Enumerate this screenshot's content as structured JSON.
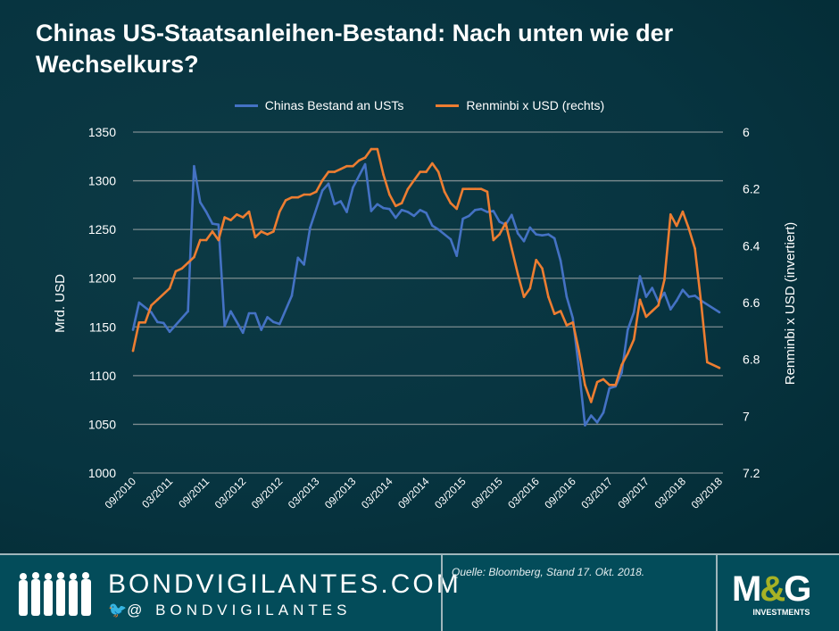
{
  "title": "Chinas US-Staatsanleihen-Bestand: Nach unten wie der Wechselkurs?",
  "footer": {
    "brand": "BONDVIGILANTES.COM",
    "handle": "@ BONDVIGILANTES",
    "source": "Quelle: Bloomberg, Stand 17. Okt. 2018.",
    "logo": "M&G INVESTMENTS",
    "logo_main_left": "M",
    "logo_amp": "&",
    "logo_main_right": "G",
    "logo_sub": "INVESTMENTS"
  },
  "chart_data": {
    "type": "line",
    "title": "Chinas US-Staatsanleihen-Bestand: Nach unten wie der Wechselkurs?",
    "ylabel": "Mrd. USD",
    "y2label": "Renminbi x USD (invertiert)",
    "ylim": [
      1000,
      1350
    ],
    "y2lim": [
      6,
      7.2
    ],
    "y2_inverted": true,
    "yticks": [
      1000,
      1050,
      1100,
      1150,
      1200,
      1250,
      1300,
      1350
    ],
    "y2ticks": [
      "6",
      "6.2",
      "6.4",
      "6.6",
      "6.8",
      "7",
      "7.2"
    ],
    "xticks": [
      "09/2010",
      "03/2011",
      "09/2011",
      "03/2012",
      "09/2012",
      "03/2013",
      "09/2013",
      "03/2014",
      "09/2014",
      "03/2015",
      "09/2015",
      "03/2016",
      "09/2016",
      "03/2017",
      "09/2017",
      "03/2018",
      "09/2018"
    ],
    "grid": true,
    "legend_position": "top",
    "series": [
      {
        "name": "Chinas Bestand an USTs",
        "axis": "left",
        "color": "#4472c4",
        "points": [
          [
            "2010-09",
            1147
          ],
          [
            "2010-10",
            1175
          ],
          [
            "2010-12",
            1165
          ],
          [
            "2011-01",
            1155
          ],
          [
            "2011-02",
            1154
          ],
          [
            "2011-03",
            1145
          ],
          [
            "2011-06",
            1166
          ],
          [
            "2011-07",
            1315
          ],
          [
            "2011-08",
            1278
          ],
          [
            "2011-09",
            1268
          ],
          [
            "2011-10",
            1256
          ],
          [
            "2011-11",
            1255
          ],
          [
            "2011-12",
            1151
          ],
          [
            "2012-01",
            1166
          ],
          [
            "2012-03",
            1144
          ],
          [
            "2012-04",
            1164
          ],
          [
            "2012-05",
            1164
          ],
          [
            "2012-06",
            1147
          ],
          [
            "2012-07",
            1160
          ],
          [
            "2012-08",
            1155
          ],
          [
            "2012-09",
            1153
          ],
          [
            "2012-11",
            1182
          ],
          [
            "2012-12",
            1221
          ],
          [
            "2013-01",
            1214
          ],
          [
            "2013-02",
            1252
          ],
          [
            "2013-04",
            1290
          ],
          [
            "2013-05",
            1297
          ],
          [
            "2013-06",
            1276
          ],
          [
            "2013-07",
            1279
          ],
          [
            "2013-08",
            1268
          ],
          [
            "2013-09",
            1293
          ],
          [
            "2013-11",
            1317
          ],
          [
            "2013-12",
            1269
          ],
          [
            "2014-01",
            1276
          ],
          [
            "2014-02",
            1272
          ],
          [
            "2014-03",
            1271
          ],
          [
            "2014-04",
            1262
          ],
          [
            "2014-05",
            1270
          ],
          [
            "2014-06",
            1268
          ],
          [
            "2014-07",
            1264
          ],
          [
            "2014-08",
            1270
          ],
          [
            "2014-09",
            1267
          ],
          [
            "2014-10",
            1254
          ],
          [
            "2014-11",
            1250
          ],
          [
            "2015-01",
            1240
          ],
          [
            "2015-02",
            1223
          ],
          [
            "2015-03",
            1261
          ],
          [
            "2015-04",
            1264
          ],
          [
            "2015-05",
            1270
          ],
          [
            "2015-06",
            1271
          ],
          [
            "2015-07",
            1268
          ],
          [
            "2015-08",
            1269
          ],
          [
            "2015-09",
            1258
          ],
          [
            "2015-10",
            1255
          ],
          [
            "2015-11",
            1265
          ],
          [
            "2015-12",
            1246
          ],
          [
            "2016-01",
            1238
          ],
          [
            "2016-02",
            1252
          ],
          [
            "2016-03",
            1245
          ],
          [
            "2016-04",
            1244
          ],
          [
            "2016-05",
            1245
          ],
          [
            "2016-06",
            1241
          ],
          [
            "2016-07",
            1218
          ],
          [
            "2016-08",
            1181
          ],
          [
            "2016-09",
            1159
          ],
          [
            "2016-10",
            1107
          ],
          [
            "2016-11",
            1049
          ],
          [
            "2016-12",
            1059
          ],
          [
            "2017-01",
            1052
          ],
          [
            "2017-02",
            1062
          ],
          [
            "2017-03",
            1087
          ],
          [
            "2017-04",
            1089
          ],
          [
            "2017-05",
            1103
          ],
          [
            "2017-06",
            1147
          ],
          [
            "2017-07",
            1165
          ],
          [
            "2017-08",
            1202
          ],
          [
            "2017-09",
            1181
          ],
          [
            "2017-10",
            1190
          ],
          [
            "2017-11",
            1176
          ],
          [
            "2017-12",
            1185
          ],
          [
            "2018-01",
            1168
          ],
          [
            "2018-02",
            1177
          ],
          [
            "2018-03",
            1188
          ],
          [
            "2018-04",
            1181
          ],
          [
            "2018-05",
            1182
          ],
          [
            "2018-06",
            1177
          ],
          [
            "2018-09",
            1165
          ]
        ]
      },
      {
        "name": "Renminbi x USD (rechts)",
        "axis": "right",
        "color": "#ed7d31",
        "points": [
          [
            "2010-09",
            6.77
          ],
          [
            "2010-10",
            6.67
          ],
          [
            "2010-11",
            6.67
          ],
          [
            "2010-12",
            6.61
          ],
          [
            "2011-01",
            6.59
          ],
          [
            "2011-03",
            6.55
          ],
          [
            "2011-04",
            6.49
          ],
          [
            "2011-05",
            6.48
          ],
          [
            "2011-06",
            6.46
          ],
          [
            "2011-07",
            6.44
          ],
          [
            "2011-08",
            6.38
          ],
          [
            "2011-09",
            6.38
          ],
          [
            "2011-10",
            6.35
          ],
          [
            "2011-11",
            6.38
          ],
          [
            "2011-12",
            6.3
          ],
          [
            "2012-01",
            6.31
          ],
          [
            "2012-02",
            6.29
          ],
          [
            "2012-03",
            6.3
          ],
          [
            "2012-04",
            6.28
          ],
          [
            "2012-05",
            6.37
          ],
          [
            "2012-06",
            6.35
          ],
          [
            "2012-07",
            6.36
          ],
          [
            "2012-08",
            6.35
          ],
          [
            "2012-09",
            6.28
          ],
          [
            "2012-10",
            6.24
          ],
          [
            "2012-11",
            6.23
          ],
          [
            "2012-12",
            6.23
          ],
          [
            "2013-01",
            6.22
          ],
          [
            "2013-02",
            6.22
          ],
          [
            "2013-03",
            6.21
          ],
          [
            "2013-04",
            6.17
          ],
          [
            "2013-05",
            6.14
          ],
          [
            "2013-06",
            6.14
          ],
          [
            "2013-07",
            6.13
          ],
          [
            "2013-08",
            6.12
          ],
          [
            "2013-09",
            6.12
          ],
          [
            "2013-10",
            6.1
          ],
          [
            "2013-11",
            6.09
          ],
          [
            "2013-12",
            6.06
          ],
          [
            "2014-01",
            6.06
          ],
          [
            "2014-02",
            6.15
          ],
          [
            "2014-03",
            6.22
          ],
          [
            "2014-04",
            6.26
          ],
          [
            "2014-05",
            6.25
          ],
          [
            "2014-06",
            6.2
          ],
          [
            "2014-07",
            6.17
          ],
          [
            "2014-08",
            6.14
          ],
          [
            "2014-09",
            6.14
          ],
          [
            "2014-10",
            6.11
          ],
          [
            "2014-11",
            6.14
          ],
          [
            "2014-12",
            6.21
          ],
          [
            "2015-01",
            6.25
          ],
          [
            "2015-02",
            6.27
          ],
          [
            "2015-03",
            6.2
          ],
          [
            "2015-04",
            6.2
          ],
          [
            "2015-05",
            6.2
          ],
          [
            "2015-06",
            6.2
          ],
          [
            "2015-07",
            6.21
          ],
          [
            "2015-08",
            6.38
          ],
          [
            "2015-09",
            6.36
          ],
          [
            "2015-10",
            6.32
          ],
          [
            "2015-11",
            6.41
          ],
          [
            "2015-12",
            6.5
          ],
          [
            "2016-01",
            6.58
          ],
          [
            "2016-02",
            6.55
          ],
          [
            "2016-03",
            6.45
          ],
          [
            "2016-04",
            6.48
          ],
          [
            "2016-05",
            6.58
          ],
          [
            "2016-06",
            6.64
          ],
          [
            "2016-07",
            6.63
          ],
          [
            "2016-08",
            6.68
          ],
          [
            "2016-09",
            6.67
          ],
          [
            "2016-10",
            6.77
          ],
          [
            "2016-11",
            6.89
          ],
          [
            "2016-12",
            6.95
          ],
          [
            "2017-01",
            6.88
          ],
          [
            "2017-02",
            6.87
          ],
          [
            "2017-03",
            6.89
          ],
          [
            "2017-04",
            6.89
          ],
          [
            "2017-05",
            6.82
          ],
          [
            "2017-06",
            6.78
          ],
          [
            "2017-07",
            6.73
          ],
          [
            "2017-08",
            6.59
          ],
          [
            "2017-09",
            6.65
          ],
          [
            "2017-10",
            6.63
          ],
          [
            "2017-11",
            6.61
          ],
          [
            "2017-12",
            6.52
          ],
          [
            "2018-01",
            6.29
          ],
          [
            "2018-02",
            6.33
          ],
          [
            "2018-03",
            6.28
          ],
          [
            "2018-04",
            6.34
          ],
          [
            "2018-05",
            6.41
          ],
          [
            "2018-06",
            6.6
          ],
          [
            "2018-07",
            6.81
          ],
          [
            "2018-09",
            6.83
          ]
        ]
      }
    ]
  }
}
